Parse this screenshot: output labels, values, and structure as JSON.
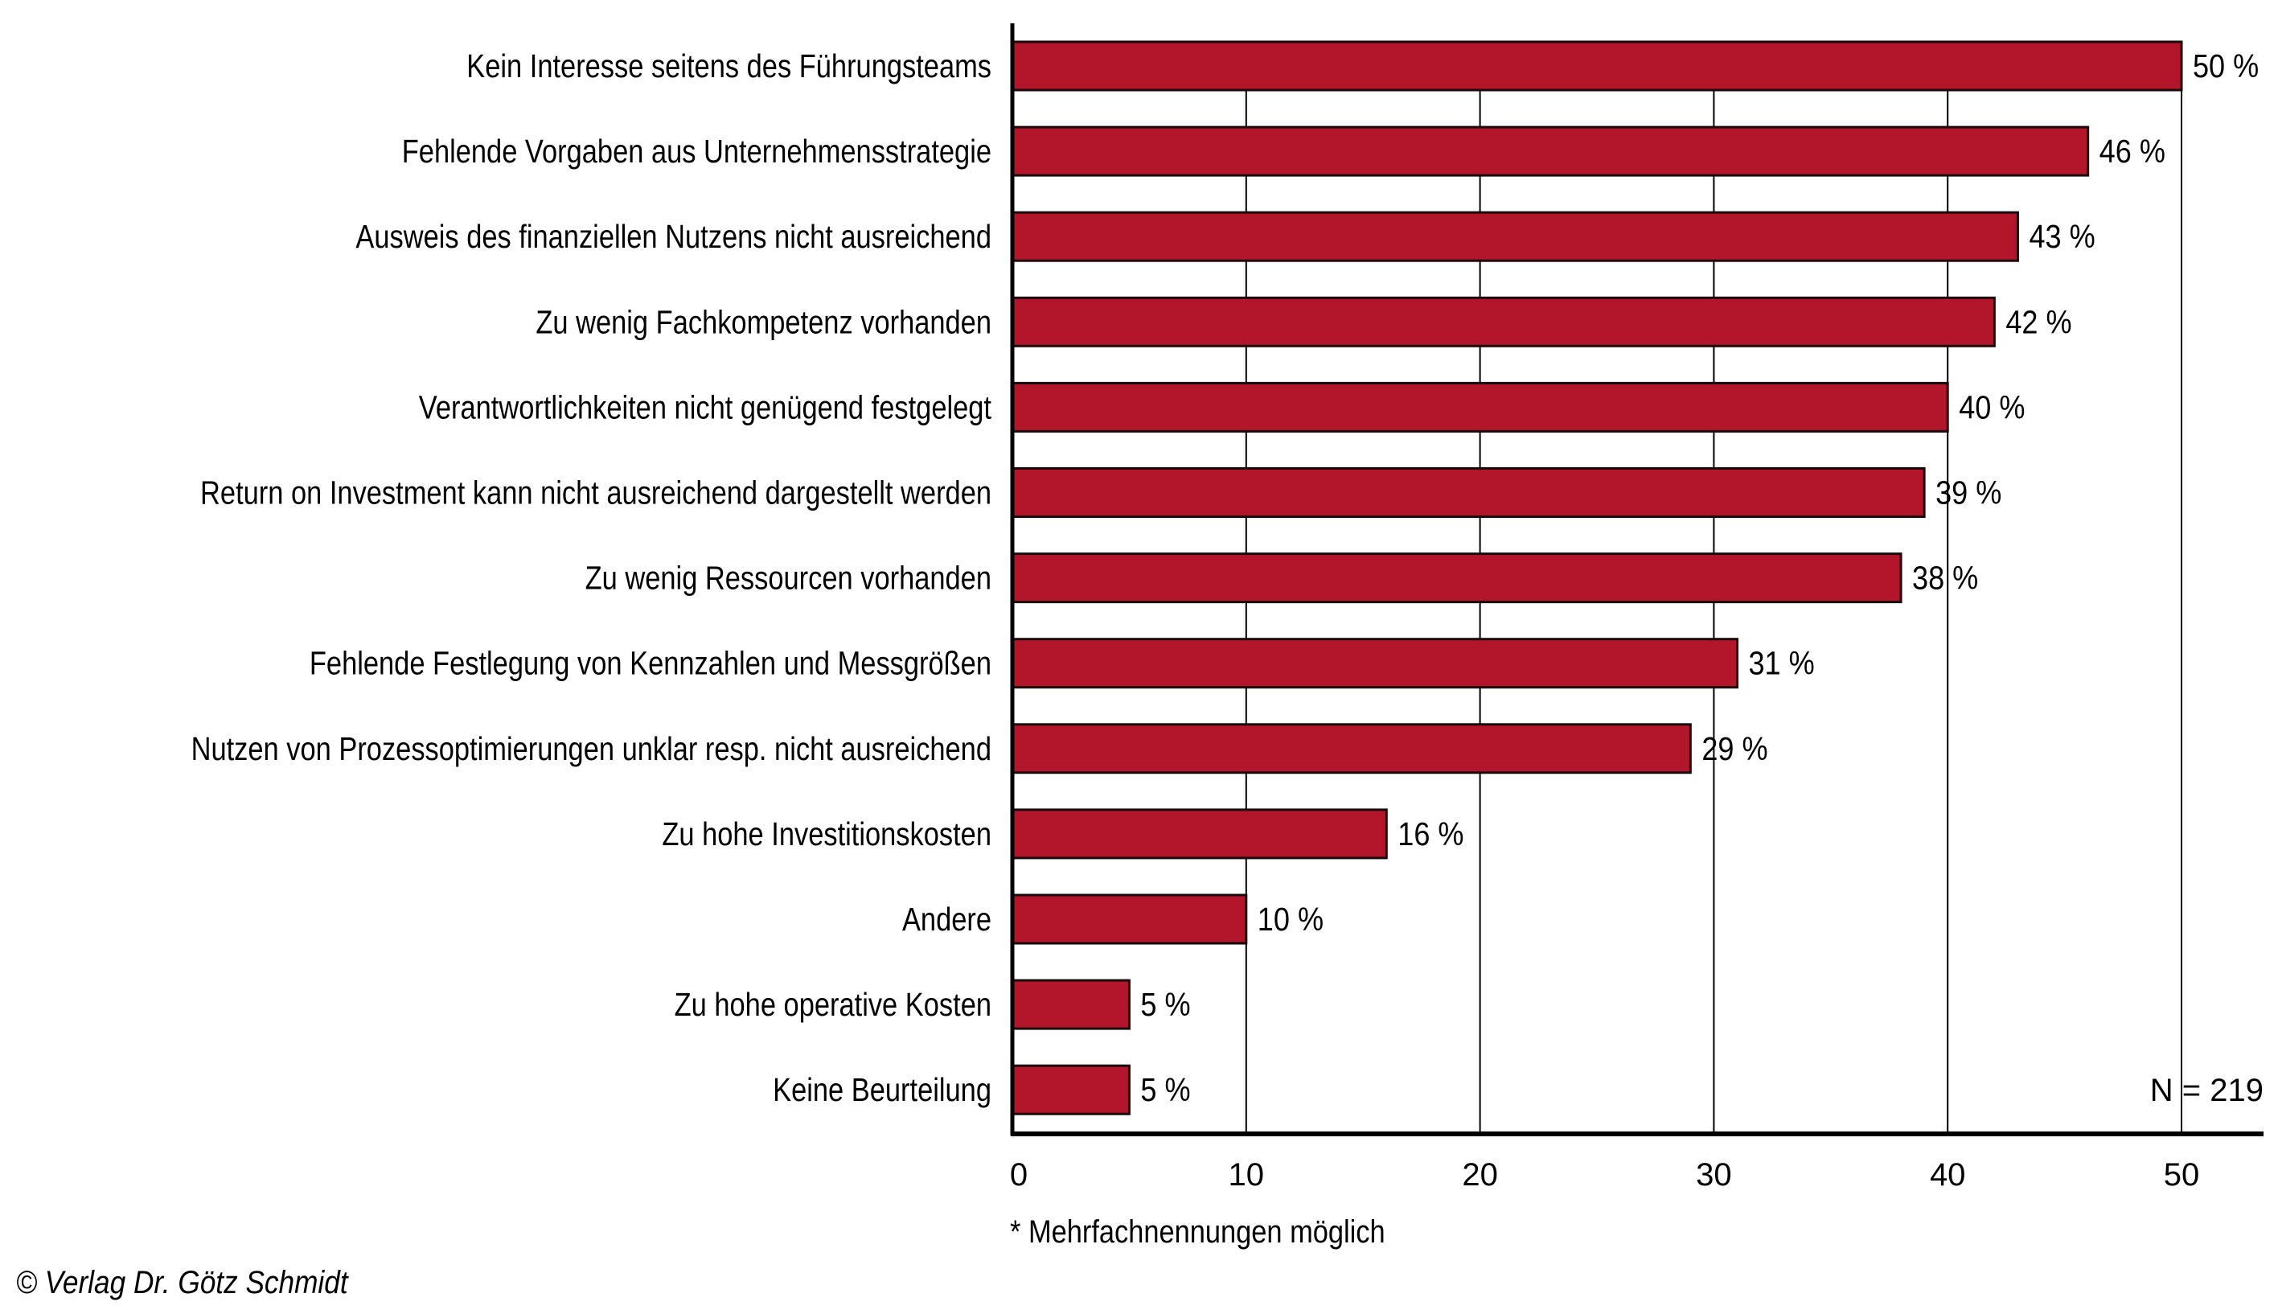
{
  "chart_data": {
    "type": "bar",
    "orientation": "horizontal",
    "title": "",
    "xlabel": "",
    "ylabel": "",
    "categories": [
      "Kein Interesse seitens des Führungsteams",
      "Fehlende Vorgaben aus Unternehmensstrategie",
      "Ausweis des finanziellen Nutzens nicht ausreichend",
      "Zu wenig Fachkompetenz vorhanden",
      "Verantwortlichkeiten nicht genügend festgelegt",
      "Return on Investment kann nicht ausreichend dargestellt werden",
      "Zu wenig Ressourcen vorhanden",
      "Fehlende Festlegung von Kennzahlen und Messgrößen",
      "Nutzen von Prozessoptimierungen unklar resp. nicht ausreichend",
      "Zu hohe Investitionskosten",
      "Andere",
      "Zu hohe operative Kosten",
      "Keine Beurteilung"
    ],
    "values": [
      50,
      46,
      43,
      42,
      40,
      39,
      38,
      31,
      29,
      16,
      10,
      5,
      5
    ],
    "value_labels": [
      "50 %",
      "46 %",
      "43 %",
      "42 %",
      "40 %",
      "39 %",
      "38 %",
      "31 %",
      "29 %",
      "16 %",
      "10 %",
      "5 %",
      "5 %"
    ],
    "xlim": [
      0,
      50
    ],
    "x_ticks": [
      0,
      10,
      20,
      30,
      40,
      50
    ],
    "x_tick_labels": [
      "0",
      "10",
      "20",
      "30",
      "40",
      "50"
    ],
    "grid": "vertical",
    "bar_color": "#B3162B",
    "annotation": "N = 219"
  },
  "footnote": "* Mehrfachnennungen möglich",
  "copyright": "© Verlag Dr. Götz Schmidt"
}
